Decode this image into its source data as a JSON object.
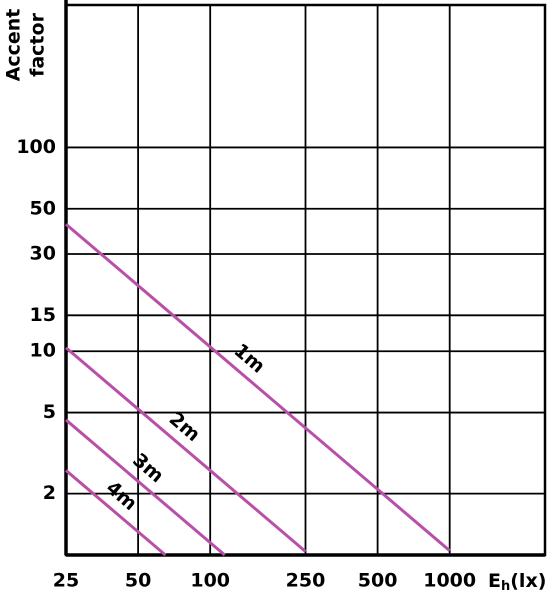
{
  "chart_data": {
    "type": "line",
    "y_label": [
      "Accent",
      "factor"
    ],
    "x_label": "E",
    "x_label_sub": "h",
    "x_label_unit": "(lx)",
    "xlim": [
      25,
      2500
    ],
    "xticks": [
      25,
      50,
      100,
      250,
      500,
      1000
    ],
    "x_log": true,
    "ylim": [
      1,
      500
    ],
    "yticks": [
      2,
      5,
      10,
      15,
      30,
      50,
      100
    ],
    "y_log": true,
    "grid": true,
    "series": [
      {
        "name": "1m",
        "color": "#b84fa8",
        "x": [
          25,
          1000
        ],
        "values": [
          42,
          1.05
        ]
      },
      {
        "name": "2m",
        "color": "#b84fa8",
        "x": [
          25,
          250
        ],
        "values": [
          10.4,
          1.04
        ]
      },
      {
        "name": "3m",
        "color": "#b84fa8",
        "x": [
          25,
          115
        ],
        "values": [
          4.6,
          1.0
        ]
      },
      {
        "name": "4m",
        "color": "#b84fa8",
        "x": [
          25,
          65
        ],
        "values": [
          2.6,
          1.0
        ]
      }
    ]
  }
}
